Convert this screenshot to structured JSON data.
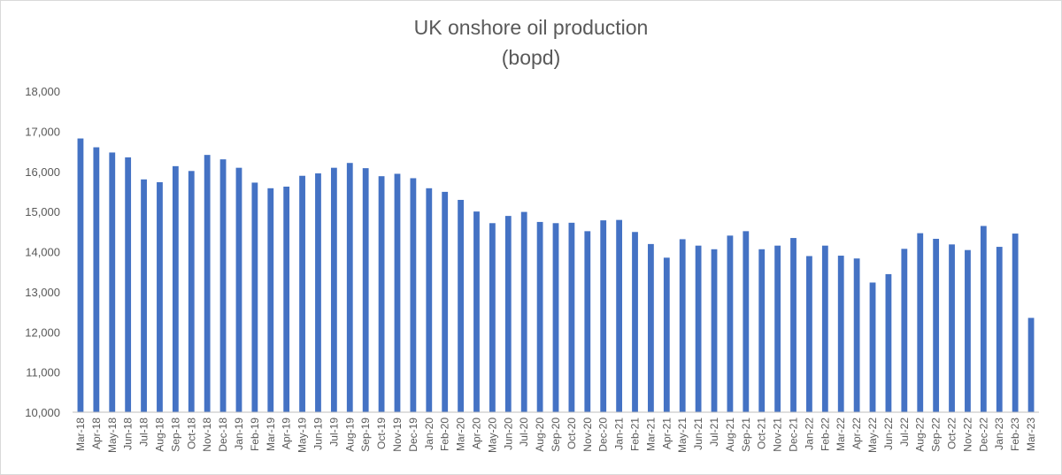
{
  "chart_data": {
    "type": "bar",
    "title": "UK onshore oil production",
    "subtitle": "(bopd)",
    "xlabel": "",
    "ylabel": "",
    "ylim": [
      10000,
      18000
    ],
    "yticks": [
      "10,000",
      "11,000",
      "12,000",
      "13,000",
      "14,000",
      "15,000",
      "16,000",
      "17,000",
      "18,000"
    ],
    "grid": false,
    "legend": "none",
    "bar_color": "#4472C4",
    "categories": [
      "Mar-18",
      "Apr-18",
      "May-18",
      "Jun-18",
      "Jul-18",
      "Aug-18",
      "Sep-18",
      "Oct-18",
      "Nov-18",
      "Dec-18",
      "Jan-19",
      "Feb-19",
      "Mar-19",
      "Apr-19",
      "May-19",
      "Jun-19",
      "Jul-19",
      "Aug-19",
      "Sep-19",
      "Oct-19",
      "Nov-19",
      "Dec-19",
      "Jan-20",
      "Feb-20",
      "Mar-20",
      "Apr-20",
      "May-20",
      "Jun-20",
      "Jul-20",
      "Aug-20",
      "Sep-20",
      "Oct-20",
      "Nov-20",
      "Dec-20",
      "Jan-21",
      "Feb-21",
      "Mar-21",
      "Apr-21",
      "May-21",
      "Jun-21",
      "Jul-21",
      "Aug-21",
      "Sep-21",
      "Oct-21",
      "Nov-21",
      "Dec-21",
      "Jan-22",
      "Feb-22",
      "Mar-22",
      "Apr-22",
      "May-22",
      "Jun-22",
      "Jul-22",
      "Aug-22",
      "Sep-22",
      "Oct-22",
      "Nov-22",
      "Dec-22",
      "Jan-23",
      "Feb-23",
      "Mar-23"
    ],
    "values": [
      16820,
      16600,
      16470,
      16350,
      15800,
      15730,
      16130,
      16010,
      16410,
      16300,
      16090,
      15720,
      15580,
      15620,
      15890,
      15950,
      16090,
      16210,
      16080,
      15880,
      15940,
      15830,
      15580,
      15490,
      15290,
      15000,
      14710,
      14890,
      14990,
      14740,
      14710,
      14720,
      14510,
      14780,
      14790,
      14490,
      14190,
      13850,
      14310,
      14150,
      14060,
      14400,
      14510,
      14060,
      14150,
      14340,
      13890,
      14150,
      13900,
      13830,
      13230,
      13440,
      14070,
      14460,
      14320,
      14180,
      14040,
      14640,
      14120,
      14450,
      12350
    ]
  }
}
